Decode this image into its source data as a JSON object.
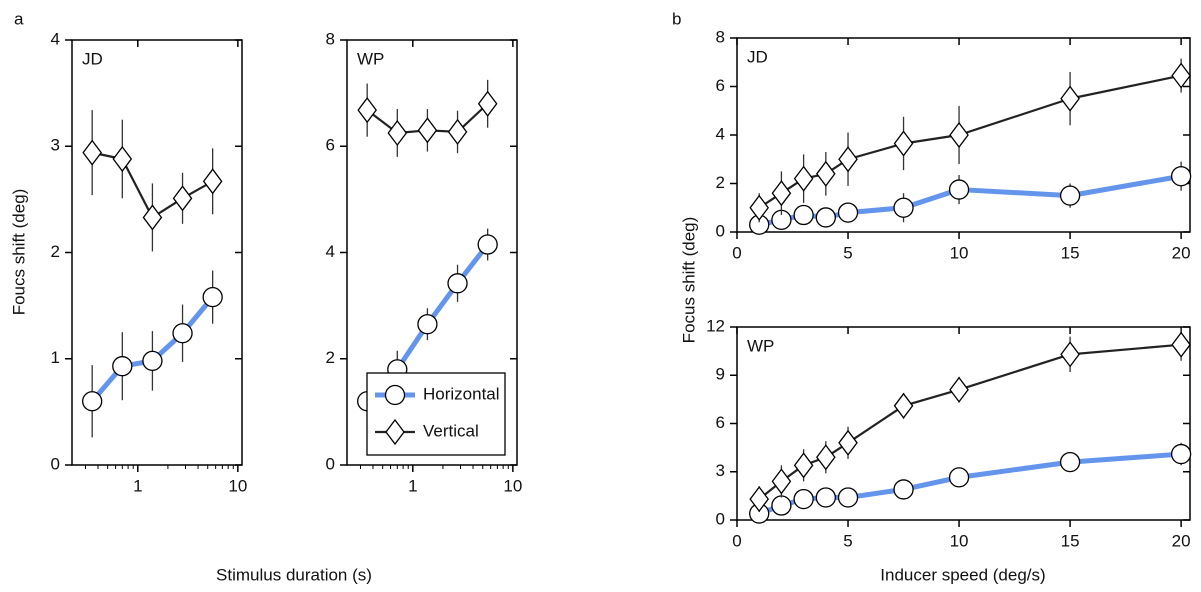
{
  "panel_labels": [
    "a",
    "b"
  ],
  "chart_data": [
    {
      "type": "line",
      "label": "JD",
      "xscale": "log",
      "xlim": [
        0.22,
        11
      ],
      "xticks": [
        1,
        10
      ],
      "ylim": [
        0,
        4
      ],
      "yticks": [
        0,
        1,
        2,
        3,
        4
      ],
      "ylabel": "Foucs shift (deg)",
      "xlabel": "Stimulus duration (s)",
      "x": [
        0.35,
        0.7,
        1.4,
        2.8,
        5.6
      ],
      "series": [
        {
          "color": "#6495ed",
          "marker": "circle",
          "values": [
            0.6,
            0.93,
            0.98,
            1.24,
            1.58
          ],
          "errors": [
            0.34,
            0.32,
            0.28,
            0.27,
            0.25
          ]
        },
        {
          "color": "#222222",
          "marker": "diamond",
          "values": [
            2.94,
            2.88,
            2.33,
            2.51,
            2.67
          ],
          "errors": [
            0.4,
            0.37,
            0.32,
            0.24,
            0.31
          ]
        }
      ]
    },
    {
      "type": "line",
      "label": "WP",
      "xscale": "log",
      "xlim": [
        0.22,
        11
      ],
      "xticks": [
        1,
        10
      ],
      "ylim": [
        0,
        8
      ],
      "yticks": [
        0,
        2,
        4,
        6,
        8
      ],
      "legend": "lower right",
      "x": [
        0.35,
        0.7,
        1.4,
        2.8,
        5.6
      ],
      "series": [
        {
          "name": "Horizontal",
          "color": "#6495ed",
          "marker": "circle",
          "values": [
            1.2,
            1.8,
            2.65,
            3.42,
            4.15
          ],
          "errors": [
            0.25,
            0.35,
            0.3,
            0.35,
            0.3
          ]
        },
        {
          "name": "Vertical",
          "color": "#222222",
          "marker": "diamond",
          "values": [
            6.68,
            6.25,
            6.3,
            6.27,
            6.8
          ],
          "errors": [
            0.5,
            0.45,
            0.4,
            0.4,
            0.45
          ]
        }
      ]
    },
    {
      "type": "line",
      "label": "JD",
      "xlim": [
        0,
        20.4
      ],
      "xticks": [
        0,
        5,
        10,
        15,
        20
      ],
      "ylim": [
        0,
        8
      ],
      "yticks": [
        0,
        2,
        4,
        6,
        8
      ],
      "ylabel": "Focus shift (deg)",
      "x": [
        1,
        2,
        3,
        4,
        5,
        7.5,
        10,
        15,
        20
      ],
      "series": [
        {
          "color": "#6495ed",
          "marker": "circle",
          "values": [
            0.3,
            0.5,
            0.7,
            0.6,
            0.8,
            1.0,
            1.75,
            1.5,
            2.3
          ],
          "errors": [
            0.2,
            0.3,
            0.3,
            0.2,
            0.3,
            0.6,
            0.6,
            0.5,
            0.6
          ]
        },
        {
          "color": "#222222",
          "marker": "diamond",
          "values": [
            1.0,
            1.6,
            2.2,
            2.4,
            3.0,
            3.65,
            4.0,
            5.5,
            6.45
          ],
          "errors": [
            0.6,
            0.9,
            1.0,
            0.9,
            1.1,
            1.1,
            1.2,
            1.1,
            0.7
          ]
        }
      ]
    },
    {
      "type": "line",
      "label": "WP",
      "xlim": [
        0,
        20.4
      ],
      "xticks": [
        0,
        5,
        10,
        15,
        20
      ],
      "ylim": [
        0,
        12
      ],
      "yticks": [
        0,
        3,
        6,
        9,
        12
      ],
      "xlabel": "Inducer speed (deg/s)",
      "x": [
        1,
        2,
        3,
        4,
        5,
        7.5,
        10,
        15,
        20
      ],
      "series": [
        {
          "color": "#6495ed",
          "marker": "circle",
          "values": [
            0.4,
            0.9,
            1.3,
            1.4,
            1.4,
            1.9,
            2.65,
            3.6,
            4.1
          ],
          "errors": [
            0.3,
            0.4,
            0.4,
            0.4,
            0.4,
            0.5,
            0.6,
            0.5,
            0.7
          ]
        },
        {
          "color": "#222222",
          "marker": "diamond",
          "values": [
            1.3,
            2.4,
            3.4,
            3.9,
            4.8,
            7.1,
            8.1,
            10.3,
            10.9
          ],
          "errors": [
            0.8,
            1.0,
            1.0,
            1.0,
            1.0,
            0.8,
            0.8,
            1.1,
            1.0
          ]
        }
      ]
    }
  ]
}
